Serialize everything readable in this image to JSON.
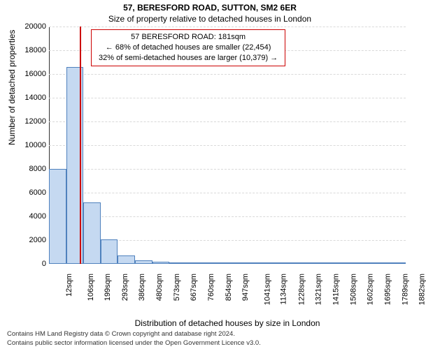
{
  "title": "57, BERESFORD ROAD, SUTTON, SM2 6ER",
  "subtitle": "Size of property relative to detached houses in London",
  "annotation": {
    "line1": "57 BERESFORD ROAD: 181sqm",
    "line2": "← 68% of detached houses are smaller (22,454)",
    "line3": "32% of semi-detached houses are larger (10,379) →",
    "border_color": "#cc0000"
  },
  "ylabel": "Number of detached properties",
  "xlabel": "Distribution of detached houses by size in London",
  "credit_line1": "Contains HM Land Registry data © Crown copyright and database right 2024.",
  "credit_line2": "Contains public sector information licensed under the Open Government Licence v3.0.",
  "chart": {
    "type": "histogram",
    "background_color": "#ffffff",
    "grid_color": "#d9d9d9",
    "bar_fill": "#c5d9f1",
    "bar_border": "#4f81bd",
    "ref_line_color": "#cc0000",
    "ref_line_x": 181,
    "label_fontsize": 12,
    "tick_fontsize": 11,
    "ylim": [
      0,
      20000
    ],
    "ytick_step": 2000,
    "xlim": [
      12,
      1950
    ],
    "xticks": [
      12,
      106,
      199,
      293,
      386,
      480,
      573,
      667,
      760,
      854,
      947,
      1041,
      1134,
      1228,
      1321,
      1415,
      1508,
      1602,
      1695,
      1789,
      1882
    ],
    "xtick_suffix": "sqm",
    "bars": [
      {
        "x0": 12,
        "x1": 106,
        "y": 8000
      },
      {
        "x0": 106,
        "x1": 199,
        "y": 16600
      },
      {
        "x0": 199,
        "x1": 293,
        "y": 5200
      },
      {
        "x0": 293,
        "x1": 386,
        "y": 2050
      },
      {
        "x0": 386,
        "x1": 480,
        "y": 700
      },
      {
        "x0": 480,
        "x1": 573,
        "y": 320
      },
      {
        "x0": 573,
        "x1": 667,
        "y": 180
      },
      {
        "x0": 667,
        "x1": 760,
        "y": 120
      },
      {
        "x0": 760,
        "x1": 854,
        "y": 90
      },
      {
        "x0": 854,
        "x1": 947,
        "y": 70
      },
      {
        "x0": 947,
        "x1": 1041,
        "y": 55
      },
      {
        "x0": 1041,
        "x1": 1134,
        "y": 45
      },
      {
        "x0": 1134,
        "x1": 1228,
        "y": 38
      },
      {
        "x0": 1228,
        "x1": 1321,
        "y": 32
      },
      {
        "x0": 1321,
        "x1": 1415,
        "y": 28
      },
      {
        "x0": 1415,
        "x1": 1508,
        "y": 24
      },
      {
        "x0": 1508,
        "x1": 1602,
        "y": 20
      },
      {
        "x0": 1602,
        "x1": 1695,
        "y": 18
      },
      {
        "x0": 1695,
        "x1": 1789,
        "y": 15
      },
      {
        "x0": 1789,
        "x1": 1882,
        "y": 12
      },
      {
        "x0": 1882,
        "x1": 1950,
        "y": 10
      }
    ]
  }
}
